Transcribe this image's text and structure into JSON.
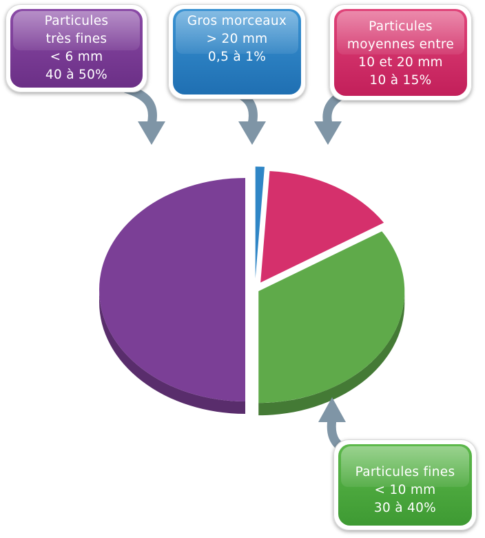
{
  "colors": {
    "very_fine": "#7b3f96",
    "coarse": "#2f86c6",
    "medium": "#d5306c",
    "fine": "#5faa4a",
    "arrow": "#7f95a6"
  },
  "callouts": {
    "very_fine": {
      "lines": [
        "Particules",
        "très fines",
        "< 6 mm",
        "40 à 50%"
      ]
    },
    "coarse": {
      "lines": [
        "Gros morceaux",
        "> 20 mm",
        "0,5 à 1%"
      ]
    },
    "medium": {
      "lines": [
        "Particules",
        "moyennes entre",
        "10 et 20 mm",
        "10 à 15%"
      ]
    },
    "fine": {
      "lines": [
        "Particules fines",
        "< 10 mm",
        "30 à 40%"
      ]
    }
  },
  "chart_data": {
    "type": "pie",
    "style": "3d-exploded",
    "slices": [
      {
        "label": "Particules très fines",
        "range": "40 à 50%",
        "value": 50,
        "color": "#7b3f96"
      },
      {
        "label": "Gros morceaux",
        "range": "0,5 à 1%",
        "value": 1,
        "color": "#2f86c6"
      },
      {
        "label": "Particules moyennes",
        "range": "10 à 15%",
        "value": 15,
        "color": "#d5306c"
      },
      {
        "label": "Particules fines",
        "range": "30 à 40%",
        "value": 34,
        "color": "#5faa4a"
      }
    ]
  }
}
